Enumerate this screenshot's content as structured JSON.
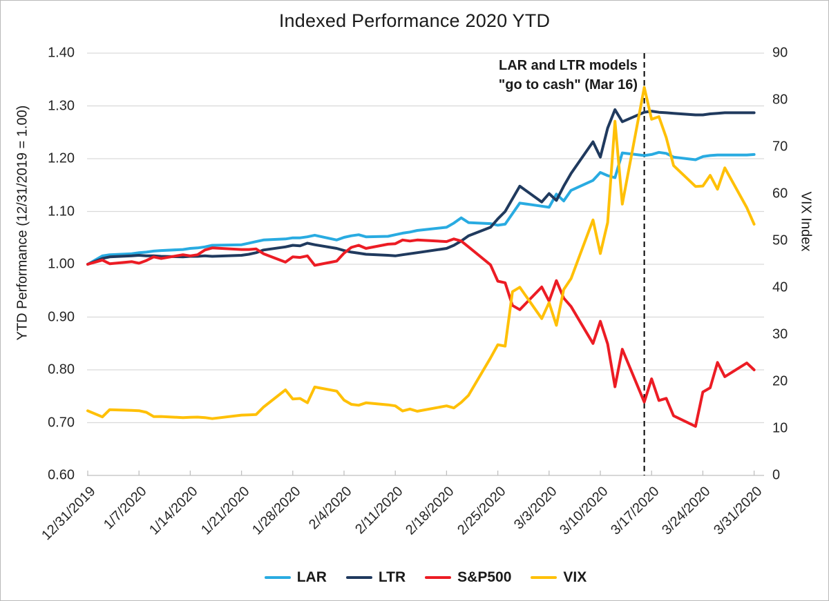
{
  "title": "Indexed Performance 2020 YTD",
  "annotation": {
    "line1": "LAR and LTR models",
    "line2": "\"go to cash\" (Mar 16)"
  },
  "chart_data": {
    "type": "line",
    "title": "Indexed Performance 2020 YTD",
    "legend_position": "bottom",
    "grid": "horizontal",
    "left_axis": {
      "label": "YTD Performance (12/31/2019 = 1.00)",
      "min": 0.6,
      "max": 1.4,
      "step": 0.1,
      "ticks": [
        "0.60",
        "0.70",
        "0.80",
        "0.90",
        "1.00",
        "1.10",
        "1.20",
        "1.30",
        "1.40"
      ]
    },
    "right_axis": {
      "label": "VIX Index",
      "min": 0,
      "max": 90,
      "step": 10,
      "ticks": [
        "0",
        "10",
        "20",
        "30",
        "40",
        "50",
        "60",
        "70",
        "80",
        "90"
      ]
    },
    "x_axis": {
      "tick_labels": [
        "12/31/2019",
        "1/7/2020",
        "1/14/2020",
        "1/21/2020",
        "1/28/2020",
        "2/4/2020",
        "2/11/2020",
        "2/18/2020",
        "2/25/2020",
        "3/3/2020",
        "3/10/2020",
        "3/17/2020",
        "3/24/2020",
        "3/31/2020"
      ],
      "tick_days": [
        0,
        7,
        14,
        21,
        28,
        35,
        42,
        49,
        56,
        63,
        70,
        77,
        84,
        91
      ],
      "label_rotation_deg": -45
    },
    "event_line": {
      "date": "3/16/2020",
      "day": 76,
      "style": "dashed",
      "color": "#000000",
      "label": "LAR and LTR models \"go to cash\" (Mar 16)"
    },
    "point_dates": [
      "12/31/2019",
      "1/2/2020",
      "1/3/2020",
      "1/6/2020",
      "1/7/2020",
      "1/8/2020",
      "1/9/2020",
      "1/10/2020",
      "1/13/2020",
      "1/14/2020",
      "1/15/2020",
      "1/16/2020",
      "1/17/2020",
      "1/21/2020",
      "1/22/2020",
      "1/23/2020",
      "1/24/2020",
      "1/27/2020",
      "1/28/2020",
      "1/29/2020",
      "1/30/2020",
      "1/31/2020",
      "2/3/2020",
      "2/4/2020",
      "2/5/2020",
      "2/6/2020",
      "2/7/2020",
      "2/10/2020",
      "2/11/2020",
      "2/12/2020",
      "2/13/2020",
      "2/14/2020",
      "2/18/2020",
      "2/19/2020",
      "2/20/2020",
      "2/21/2020",
      "2/24/2020",
      "2/25/2020",
      "2/26/2020",
      "2/27/2020",
      "2/28/2020",
      "3/2/2020",
      "3/3/2020",
      "3/4/2020",
      "3/5/2020",
      "3/6/2020",
      "3/9/2020",
      "3/10/2020",
      "3/11/2020",
      "3/12/2020",
      "3/13/2020",
      "3/16/2020",
      "3/17/2020",
      "3/18/2020",
      "3/19/2020",
      "3/20/2020",
      "3/23/2020",
      "3/24/2020",
      "3/25/2020",
      "3/26/2020",
      "3/27/2020",
      "3/30/2020",
      "3/31/2020"
    ],
    "days": [
      0,
      2,
      3,
      6,
      7,
      8,
      9,
      10,
      13,
      14,
      15,
      16,
      17,
      21,
      22,
      23,
      24,
      27,
      28,
      29,
      30,
      31,
      34,
      35,
      36,
      37,
      38,
      41,
      42,
      43,
      44,
      45,
      49,
      50,
      51,
      52,
      55,
      56,
      57,
      58,
      59,
      62,
      63,
      64,
      65,
      66,
      69,
      70,
      71,
      72,
      73,
      76,
      77,
      78,
      79,
      80,
      83,
      84,
      85,
      86,
      87,
      90,
      91
    ],
    "series": [
      {
        "name": "LAR",
        "axis": "left",
        "color": "#29ABE1",
        "values": [
          1.0,
          1.016,
          1.018,
          1.02,
          1.022,
          1.023,
          1.025,
          1.026,
          1.028,
          1.03,
          1.031,
          1.033,
          1.036,
          1.037,
          1.04,
          1.043,
          1.046,
          1.048,
          1.05,
          1.05,
          1.052,
          1.055,
          1.046,
          1.051,
          1.054,
          1.056,
          1.052,
          1.053,
          1.056,
          1.059,
          1.061,
          1.064,
          1.07,
          1.078,
          1.088,
          1.079,
          1.077,
          1.074,
          1.076,
          1.096,
          1.116,
          1.11,
          1.108,
          1.133,
          1.12,
          1.14,
          1.159,
          1.174,
          1.168,
          1.164,
          1.211,
          1.206,
          1.208,
          1.212,
          1.21,
          1.203,
          1.198,
          1.204,
          1.206,
          1.207,
          1.207,
          1.207,
          1.208
        ]
      },
      {
        "name": "LTR",
        "axis": "left",
        "color": "#203A5E",
        "values": [
          1.0,
          1.011,
          1.014,
          1.016,
          1.017,
          1.016,
          1.016,
          1.015,
          1.014,
          1.015,
          1.015,
          1.016,
          1.015,
          1.017,
          1.019,
          1.022,
          1.027,
          1.033,
          1.036,
          1.035,
          1.04,
          1.037,
          1.03,
          1.026,
          1.023,
          1.021,
          1.019,
          1.017,
          1.016,
          1.018,
          1.02,
          1.022,
          1.03,
          1.036,
          1.044,
          1.054,
          1.07,
          1.086,
          1.1,
          1.124,
          1.148,
          1.118,
          1.134,
          1.121,
          1.148,
          1.172,
          1.232,
          1.203,
          1.258,
          1.293,
          1.27,
          1.288,
          1.29,
          1.288,
          1.287,
          1.286,
          1.283,
          1.283,
          1.285,
          1.286,
          1.287,
          1.287,
          1.287
        ]
      },
      {
        "name": "S&P500",
        "axis": "left",
        "color": "#EC1C24",
        "values": [
          1.0,
          1.008,
          1.001,
          1.005,
          1.002,
          1.007,
          1.014,
          1.011,
          1.018,
          1.016,
          1.018,
          1.027,
          1.031,
          1.028,
          1.028,
          1.029,
          1.02,
          1.004,
          1.014,
          1.013,
          1.016,
          0.998,
          1.006,
          1.021,
          1.032,
          1.036,
          1.03,
          1.038,
          1.039,
          1.046,
          1.044,
          1.046,
          1.043,
          1.048,
          1.044,
          1.033,
          0.999,
          0.968,
          0.965,
          0.922,
          0.914,
          0.957,
          0.93,
          0.969,
          0.936,
          0.92,
          0.85,
          0.892,
          0.849,
          0.768,
          0.839,
          0.739,
          0.783,
          0.742,
          0.746,
          0.713,
          0.693,
          0.758,
          0.766,
          0.814,
          0.787,
          0.813,
          0.8
        ]
      },
      {
        "name": "VIX",
        "axis": "right",
        "color": "#FFC007",
        "values": [
          13.78,
          12.47,
          14.02,
          13.85,
          13.79,
          13.45,
          12.54,
          12.56,
          12.32,
          12.39,
          12.42,
          12.32,
          12.1,
          12.85,
          12.91,
          12.98,
          14.56,
          18.23,
          16.28,
          16.39,
          15.49,
          18.84,
          17.97,
          16.05,
          15.15,
          14.96,
          15.47,
          15.04,
          14.83,
          13.74,
          14.15,
          13.68,
          14.83,
          14.38,
          15.56,
          17.08,
          25.03,
          27.85,
          27.56,
          39.16,
          40.11,
          33.42,
          36.82,
          31.99,
          39.62,
          41.94,
          54.46,
          47.3,
          53.9,
          75.47,
          57.83,
          82.69,
          75.91,
          76.45,
          72.0,
          66.04,
          61.59,
          61.67,
          63.95,
          61.0,
          65.54,
          57.08,
          53.54
        ]
      }
    ],
    "colors": {
      "gridline": "#D9D9D9",
      "axis_line": "#BFBFBF",
      "tick_text": "#262626",
      "event_line": "#000000"
    }
  }
}
